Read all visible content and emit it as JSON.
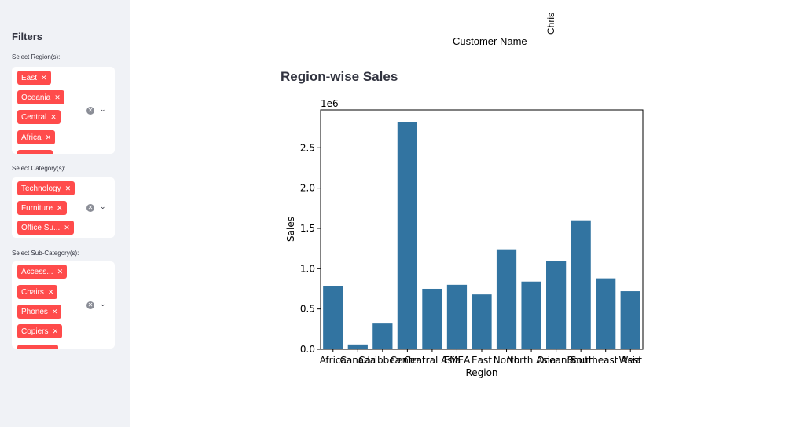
{
  "sidebar": {
    "title": "Filters",
    "filters": [
      {
        "label": "Select Region(s):",
        "tags": [
          "East",
          "Oceania",
          "Central",
          "Africa",
          ""
        ]
      },
      {
        "label": "Select Category(s):",
        "tags": [
          "Technology",
          "Furniture",
          "Office Su..."
        ]
      },
      {
        "label": "Select Sub-Category(s):",
        "tags": [
          "Access...",
          "Chairs",
          "Phones",
          "Copiers",
          ""
        ]
      }
    ]
  },
  "top_chart": {
    "xlabel": "Customer Name",
    "rotated_tick": "Chris"
  },
  "section_title": "Region-wise Sales",
  "chart_data": {
    "type": "bar",
    "title": "",
    "xlabel": "Region",
    "ylabel": "Sales",
    "offset_label": "1e6",
    "categories": [
      "Africa",
      "Canada",
      "Caribbean",
      "Central",
      "Central Asia",
      "EMEA",
      "East",
      "North",
      "North Asia",
      "Oceania",
      "South",
      "Southeast Asia",
      "West"
    ],
    "values": [
      0.78,
      0.06,
      0.32,
      2.82,
      0.75,
      0.8,
      0.68,
      1.24,
      0.84,
      1.1,
      1.6,
      0.88,
      0.72
    ],
    "yticks": [
      "0.0",
      "0.5",
      "1.0",
      "1.5",
      "2.0",
      "2.5"
    ],
    "ylim": [
      0,
      2.97
    ],
    "bar_color": "#3274a1"
  },
  "colors": {
    "accent": "#ff4b4b",
    "sidebar_bg": "#f0f2f6"
  }
}
